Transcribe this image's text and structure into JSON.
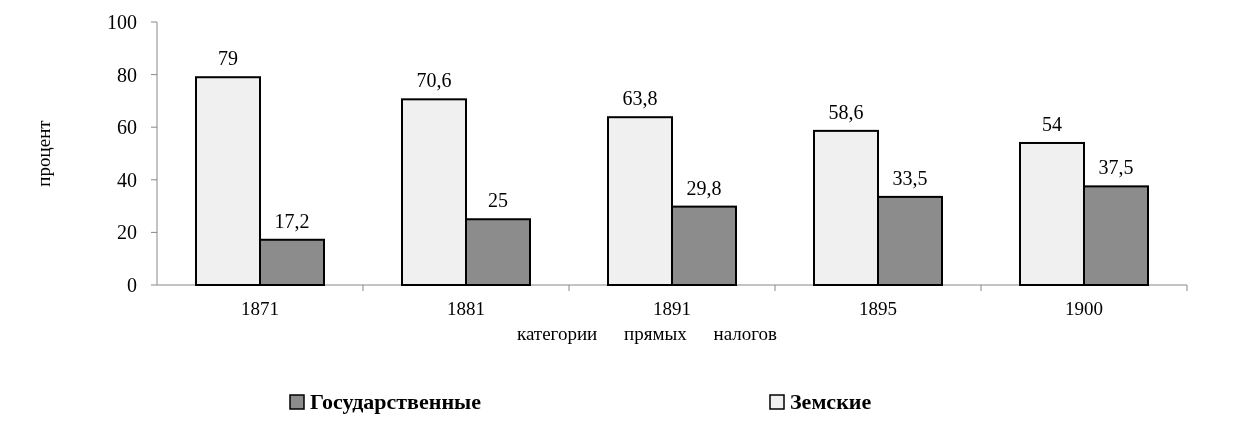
{
  "chart_data": {
    "type": "bar",
    "xlabel": "категории прямых налогов",
    "ylabel": "процент",
    "categories": [
      "1871",
      "1881",
      "1891",
      "1895",
      "1900"
    ],
    "series": [
      {
        "name": "Земские",
        "color": "#f0f0f0",
        "values": [
          79,
          70.6,
          63.8,
          58.6,
          54
        ],
        "value_labels": [
          "79",
          "70,6",
          "63,8",
          "58,6",
          "54"
        ]
      },
      {
        "name": "Государственные",
        "color": "#8c8c8c",
        "values": [
          17.2,
          25,
          29.8,
          33.5,
          37.5
        ],
        "value_labels": [
          "17,2",
          "25",
          "29,8",
          "33,5",
          "37,5"
        ]
      }
    ],
    "ylim": [
      0,
      100
    ],
    "yticks": [
      0,
      20,
      40,
      60,
      80,
      100
    ],
    "legend": "bottom",
    "grid": false
  }
}
